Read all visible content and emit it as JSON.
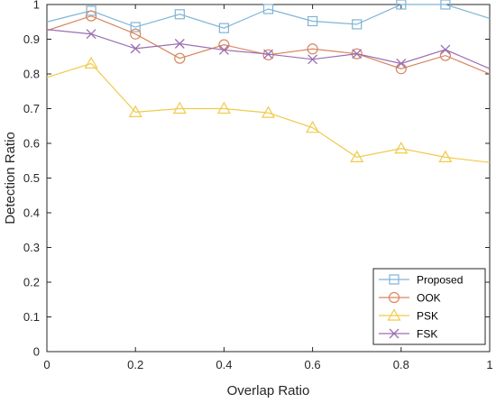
{
  "chart_data": {
    "type": "line",
    "title": "",
    "xlabel": "Overlap Ratio",
    "ylabel": "Detection Ratio",
    "xlim": [
      0,
      1
    ],
    "ylim": [
      0,
      1
    ],
    "xticks": [
      "0",
      "0.2",
      "0.4",
      "0.6",
      "0.8",
      "1"
    ],
    "xtick_values": [
      0,
      0.2,
      0.4,
      0.6,
      0.8,
      1
    ],
    "yticks": [
      "0",
      "0.1",
      "0.2",
      "0.3",
      "0.4",
      "0.5",
      "0.6",
      "0.7",
      "0.8",
      "0.9",
      "1"
    ],
    "ytick_values": [
      0,
      0.1,
      0.2,
      0.3,
      0.4,
      0.5,
      0.6,
      0.7,
      0.8,
      0.9,
      1
    ],
    "x": [
      0,
      0.1,
      0.2,
      0.3,
      0.4,
      0.5,
      0.6,
      0.7,
      0.8,
      0.9,
      1
    ],
    "grid": false,
    "legend_position": "bottom-right",
    "series": [
      {
        "name": "Proposed",
        "marker": "square",
        "color": "#7fb4d6",
        "values": [
          0.95,
          0.982,
          0.935,
          0.972,
          0.932,
          0.987,
          0.952,
          0.943,
          1.0,
          1.0,
          0.96
        ]
      },
      {
        "name": "OOK",
        "marker": "circle",
        "color": "#d9855e",
        "values": [
          0.925,
          0.967,
          0.915,
          0.845,
          0.884,
          0.855,
          0.872,
          0.858,
          0.815,
          0.853,
          0.8
        ]
      },
      {
        "name": "PSK",
        "marker": "triangle",
        "color": "#f0ca4a",
        "values": [
          0.79,
          0.83,
          0.69,
          0.7,
          0.7,
          0.688,
          0.645,
          0.56,
          0.585,
          0.56,
          0.545
        ]
      },
      {
        "name": "FSK",
        "marker": "x",
        "color": "#9a6fb2",
        "values": [
          0.928,
          0.915,
          0.873,
          0.887,
          0.869,
          0.857,
          0.842,
          0.858,
          0.83,
          0.87,
          0.815
        ]
      }
    ]
  }
}
